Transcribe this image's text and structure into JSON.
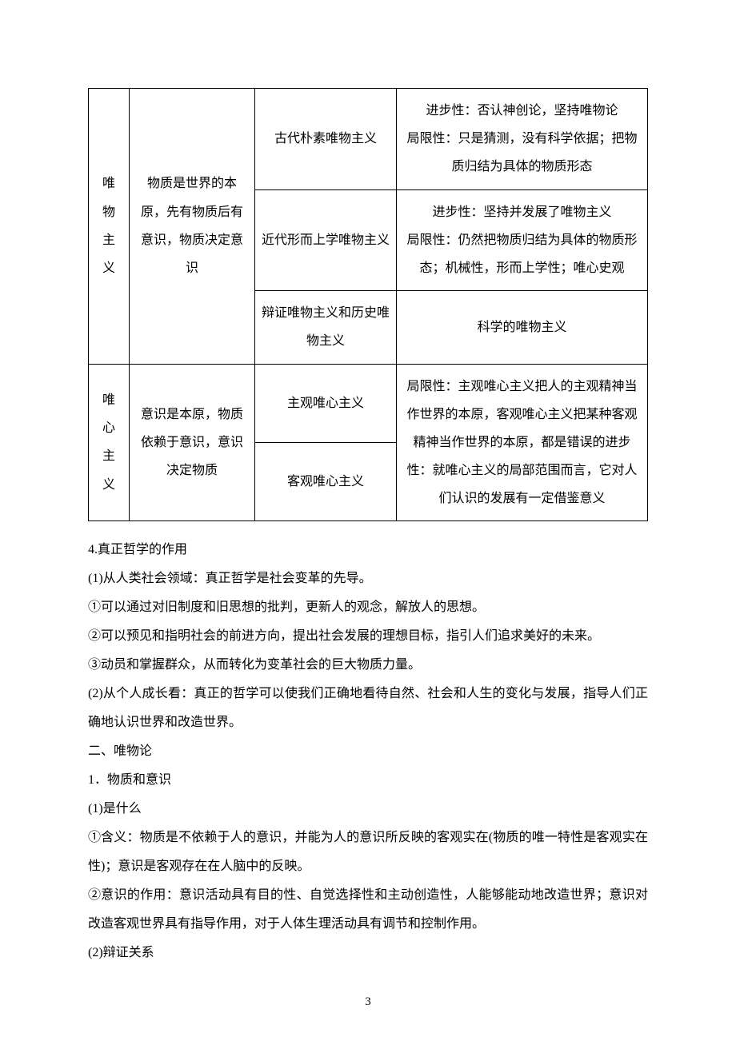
{
  "table": {
    "row1": {
      "col1_lines": [
        "唯",
        "物",
        "主",
        "义"
      ],
      "col2": "物质是世界的本原，先有物质后有意识，物质决定意识",
      "col3": "古代朴素唯物主义",
      "col4_line1": "进步性：否认神创论，坚持唯物论",
      "col4_line2": "局限性：只是猜测，没有科学依据；把物质归结为具体的物质形态"
    },
    "row2": {
      "col3": "近代形而上学唯物主义",
      "col4_line1": "进步性：坚持并发展了唯物主义",
      "col4_line2": "局限性：仍然把物质归结为具体的物质形态；机械性，形而上学性；唯心史观"
    },
    "row3": {
      "col3": "辩证唯物主义和历史唯物主义",
      "col4": "科学的唯物主义"
    },
    "row4": {
      "col1_lines": [
        "唯",
        "心",
        "主",
        "义"
      ],
      "col2": "意识是本原，物质依赖于意识，意识决定物质",
      "col3": "主观唯心主义",
      "col4": "局限性：主观唯心主义把人的主观精神当作世界的本原，客观唯心主义把某种客观精神当作世界的本原，都是错误的进步性：就唯心主义的局部范围而言，它对人们认识的发展有一定借鉴意义"
    },
    "row5": {
      "col3": "客观唯心主义"
    }
  },
  "body": {
    "p1": "4.真正哲学的作用",
    "p2": "(1)从人类社会领域：真正哲学是社会变革的先导。",
    "p3": "①可以通过对旧制度和旧思想的批判，更新人的观念，解放人的思想。",
    "p4": "②可以预见和指明社会的前进方向，提出社会发展的理想目标，指引人们追求美好的未来。",
    "p5": "③动员和掌握群众，从而转化为变革社会的巨大物质力量。",
    "p6": "(2)从个人成长看：真正的哲学可以使我们正确地看待自然、社会和人生的变化与发展，指导人们正确地认识世界和改造世界。",
    "p7": "二、唯物论",
    "p8": "1．物质和意识",
    "p9": "(1)是什么",
    "p10": "①含义：物质是不依赖于人的意识，并能为人的意识所反映的客观实在(物质的唯一特性是客观实在性)；意识是客观存在在人脑中的反映。",
    "p11": "②意识的作用：意识活动具有目的性、自觉选择性和主动创造性，人能够能动地改造世界；意识对改造客观世界具有指导作用，对于人体生理活动具有调节和控制作用。",
    "p12": "(2)辩证关系"
  },
  "page_number": "3"
}
